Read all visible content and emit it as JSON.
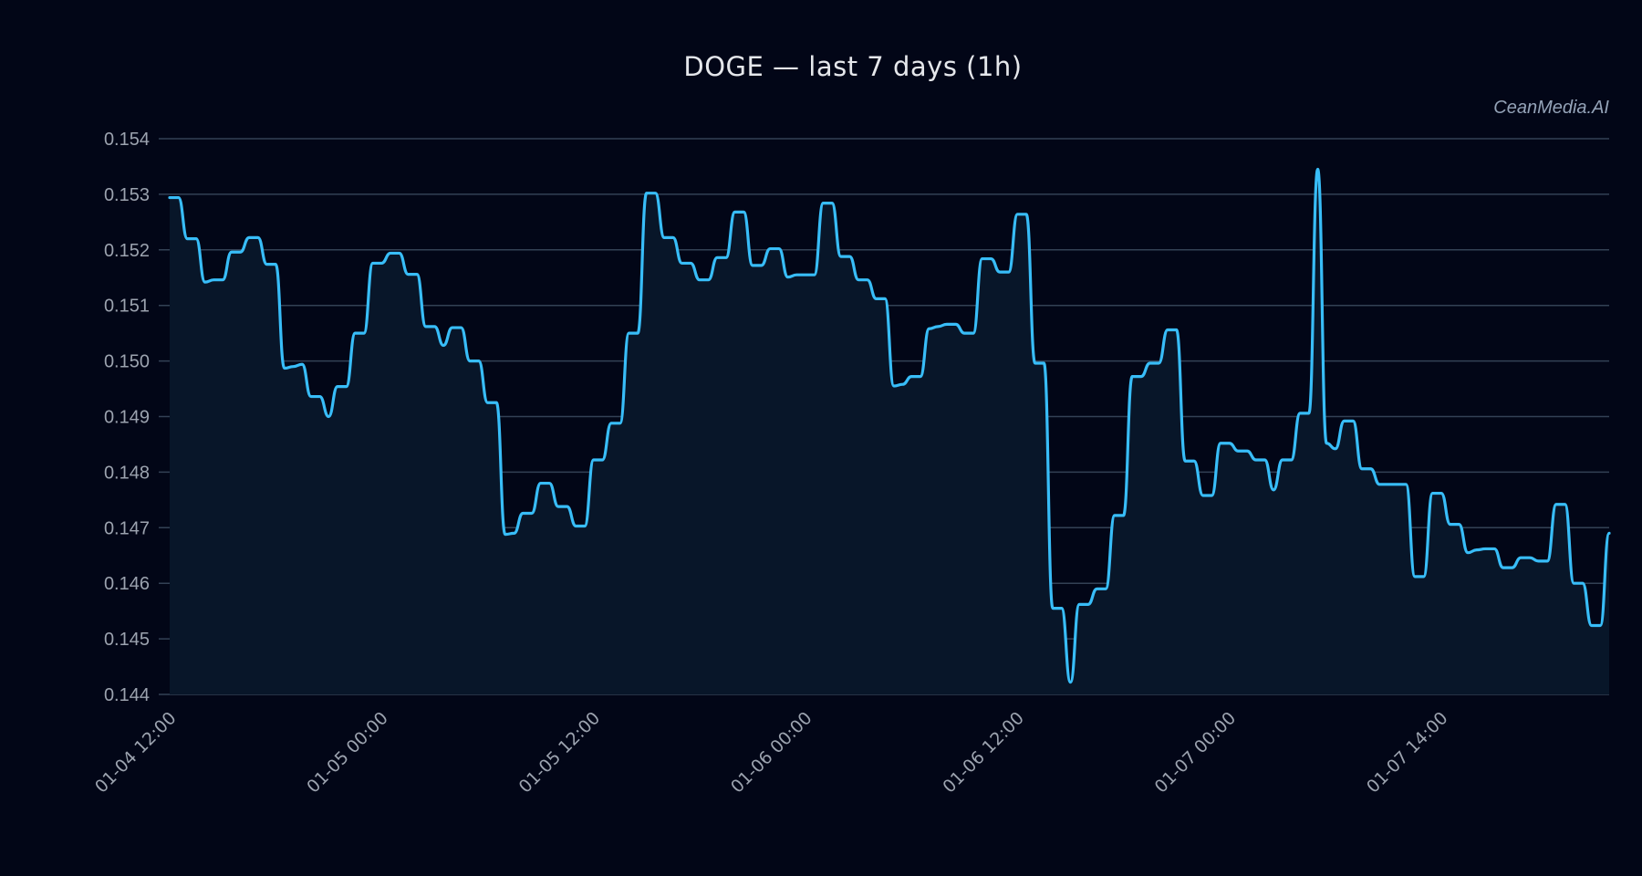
{
  "header": {
    "title": "DOGE — last 7 days (1h)",
    "watermark": "CeanMedia.AI"
  },
  "colors": {
    "background": "#020617",
    "line": "#38bdf8",
    "area_fill": "#0b1a2e",
    "grid": "#334155",
    "tick_text": "#9ca3af"
  },
  "chart_data": {
    "type": "area",
    "title": "DOGE — last 7 days (1h)",
    "xlabel": "",
    "ylabel": "",
    "ylim": [
      0.144,
      0.154
    ],
    "grid": true,
    "legend": false,
    "y_ticks": [
      "0.154",
      "0.153",
      "0.152",
      "0.151",
      "0.150",
      "0.149",
      "0.148",
      "0.147",
      "0.146",
      "0.145",
      "0.144"
    ],
    "x_ticks": [
      {
        "label": "01-04 12:00",
        "index": 0
      },
      {
        "label": "01-05 00:00",
        "index": 24
      },
      {
        "label": "01-05 12:00",
        "index": 48
      },
      {
        "label": "01-06 00:00",
        "index": 72
      },
      {
        "label": "01-06 12:00",
        "index": 96
      },
      {
        "label": "01-07 00:00",
        "index": 120
      },
      {
        "label": "01-07 14:00",
        "index": 144
      }
    ],
    "series": [
      {
        "name": "DOGE",
        "values": [
          0.15294,
          0.15294,
          0.1522,
          0.1522,
          0.15142,
          0.15146,
          0.15146,
          0.15196,
          0.15196,
          0.15222,
          0.15222,
          0.15174,
          0.15174,
          0.14987,
          0.1499,
          0.14994,
          0.14936,
          0.14936,
          0.149,
          0.14954,
          0.14954,
          0.1505,
          0.1505,
          0.15176,
          0.15176,
          0.15194,
          0.15194,
          0.15156,
          0.15156,
          0.15062,
          0.15062,
          0.15028,
          0.1506,
          0.1506,
          0.15,
          0.15,
          0.14925,
          0.14925,
          0.14688,
          0.1469,
          0.14726,
          0.14726,
          0.1478,
          0.1478,
          0.14738,
          0.14738,
          0.14703,
          0.14703,
          0.14822,
          0.14822,
          0.14888,
          0.14888,
          0.1505,
          0.1505,
          0.15302,
          0.15302,
          0.15222,
          0.15222,
          0.15176,
          0.15176,
          0.15146,
          0.15146,
          0.15186,
          0.15186,
          0.15268,
          0.15268,
          0.15172,
          0.15172,
          0.15202,
          0.15202,
          0.15151,
          0.15155,
          0.15155,
          0.15155,
          0.15284,
          0.15284,
          0.15188,
          0.15188,
          0.15146,
          0.15146,
          0.15112,
          0.15112,
          0.14955,
          0.14958,
          0.14972,
          0.14972,
          0.15058,
          0.15062,
          0.15066,
          0.15066,
          0.1505,
          0.1505,
          0.15184,
          0.15184,
          0.1516,
          0.1516,
          0.15264,
          0.15264,
          0.14996,
          0.14996,
          0.14555,
          0.14555,
          0.14422,
          0.14562,
          0.14562,
          0.1459,
          0.1459,
          0.14722,
          0.14722,
          0.14972,
          0.14972,
          0.14996,
          0.14996,
          0.15056,
          0.15056,
          0.1482,
          0.1482,
          0.14758,
          0.14758,
          0.14852,
          0.14852,
          0.14838,
          0.14838,
          0.14822,
          0.14822,
          0.14768,
          0.14822,
          0.14822,
          0.14906,
          0.14906,
          0.15345,
          0.14852,
          0.14842,
          0.14892,
          0.14892,
          0.14806,
          0.14806,
          0.14778,
          0.14778,
          0.14778,
          0.14778,
          0.14612,
          0.14612,
          0.14762,
          0.14762,
          0.14706,
          0.14706,
          0.14655,
          0.1466,
          0.14662,
          0.14662,
          0.14628,
          0.14628,
          0.14646,
          0.14646,
          0.1464,
          0.1464,
          0.14742,
          0.14742,
          0.146,
          0.146,
          0.14524,
          0.14524,
          0.1469
        ]
      }
    ]
  }
}
